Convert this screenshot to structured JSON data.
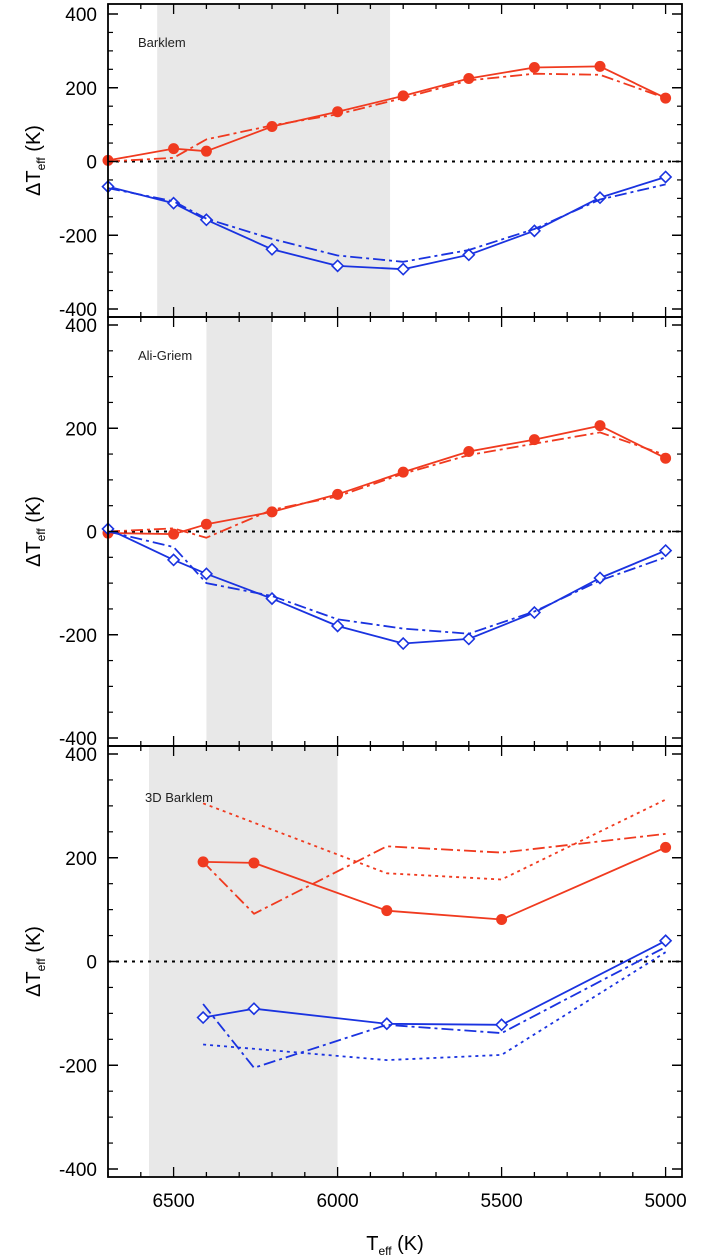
{
  "chart_data": [
    {
      "type": "line",
      "label": "Barklem",
      "ylabel": "ΔT",
      "ylabel_sub": "eff",
      "ylabel_unit": " (K)",
      "xlim": [
        6700,
        4950
      ],
      "ylim": [
        -400,
        400
      ],
      "yticks": [
        -400,
        -200,
        0,
        200,
        400
      ],
      "shade": [
        6550,
        5840
      ],
      "zero_line": true,
      "series": [
        {
          "color": "#f03a1f",
          "style": "solid",
          "marker": "circle",
          "x": [
            6700,
            6500,
            6400,
            6200,
            6000,
            5800,
            5600,
            5400,
            5200,
            5000
          ],
          "y": [
            3,
            35,
            28,
            95,
            135,
            178,
            225,
            255,
            258,
            172
          ]
        },
        {
          "color": "#f03a1f",
          "style": "dashdot",
          "marker": "none",
          "x": [
            6700,
            6500,
            6400,
            6200,
            6000,
            5800,
            5600,
            5400,
            5200,
            5000
          ],
          "y": [
            0,
            10,
            60,
            98,
            128,
            172,
            220,
            238,
            235,
            172
          ]
        },
        {
          "color": "#1a33e0",
          "style": "solid",
          "marker": "diamond",
          "x": [
            6700,
            6500,
            6400,
            6200,
            6000,
            5800,
            5600,
            5400,
            5200,
            5000
          ],
          "y": [
            -68,
            -113,
            -158,
            -238,
            -283,
            -292,
            -253,
            -188,
            -98,
            -42
          ]
        },
        {
          "color": "#1a33e0",
          "style": "dashdot",
          "marker": "none",
          "x": [
            6700,
            6500,
            6400,
            6200,
            6000,
            5800,
            5600,
            5400,
            5200,
            5000
          ],
          "y": [
            -72,
            -108,
            -155,
            -210,
            -255,
            -272,
            -240,
            -183,
            -103,
            -62
          ]
        }
      ]
    },
    {
      "type": "line",
      "label": "Ali-Griem",
      "ylabel": "ΔT",
      "ylabel_sub": "eff",
      "ylabel_unit": " (K)",
      "xlim": [
        6700,
        4950
      ],
      "ylim": [
        -400,
        400
      ],
      "yticks": [
        -400,
        -200,
        0,
        200,
        400
      ],
      "shade": [
        6400,
        6200
      ],
      "zero_line": true,
      "series": [
        {
          "color": "#f03a1f",
          "style": "solid",
          "marker": "circle",
          "x": [
            6700,
            6500,
            6400,
            6200,
            6000,
            5800,
            5600,
            5400,
            5200,
            5000
          ],
          "y": [
            -3,
            -5,
            14,
            38,
            72,
            115,
            155,
            178,
            205,
            142
          ]
        },
        {
          "color": "#f03a1f",
          "style": "dashdot",
          "marker": "none",
          "x": [
            6700,
            6500,
            6400,
            6200,
            6000,
            5800,
            5600,
            5400,
            5200,
            5000
          ],
          "y": [
            0,
            6,
            -12,
            42,
            68,
            112,
            148,
            170,
            192,
            148
          ]
        },
        {
          "color": "#1a33e0",
          "style": "solid",
          "marker": "diamond",
          "x": [
            6700,
            6500,
            6400,
            6200,
            6000,
            5800,
            5600,
            5400,
            5200,
            5000
          ],
          "y": [
            5,
            -55,
            -82,
            -130,
            -183,
            -217,
            -208,
            -157,
            -90,
            -37
          ]
        },
        {
          "color": "#1a33e0",
          "style": "dashdot",
          "marker": "none",
          "x": [
            6700,
            6500,
            6400,
            6200,
            6000,
            5800,
            5600,
            5400,
            5200,
            5000
          ],
          "y": [
            0,
            -30,
            -100,
            -125,
            -170,
            -188,
            -198,
            -155,
            -95,
            -50
          ]
        }
      ]
    },
    {
      "type": "line",
      "label": "3D Barklem",
      "xlabel": "T",
      "xlabel_sub": "eff",
      "xlabel_unit": " (K)",
      "ylabel": "ΔT",
      "ylabel_sub": "eff",
      "ylabel_unit": " (K)",
      "xlim": [
        6700,
        4950
      ],
      "ylim": [
        -400,
        400
      ],
      "yticks": [
        -400,
        -200,
        0,
        200,
        400
      ],
      "xticks": [
        6500,
        6000,
        5500,
        5000
      ],
      "shade": [
        6575,
        6000
      ],
      "zero_line": true,
      "series": [
        {
          "color": "#f03a1f",
          "style": "solid",
          "marker": "circle",
          "x": [
            6410,
            6255,
            5850,
            5500,
            5000
          ],
          "y": [
            192,
            190,
            98,
            81,
            220
          ]
        },
        {
          "color": "#f03a1f",
          "style": "dashdot",
          "marker": "none",
          "x": [
            6410,
            6255,
            5850,
            5500,
            5000
          ],
          "y": [
            192,
            92,
            222,
            210,
            246
          ]
        },
        {
          "color": "#f03a1f",
          "style": "dotted",
          "marker": "none",
          "x": [
            6410,
            5850,
            5500,
            5000
          ],
          "y": [
            305,
            170,
            158,
            312
          ]
        },
        {
          "color": "#1a33e0",
          "style": "solid",
          "marker": "diamond",
          "x": [
            6410,
            6255,
            5850,
            5500,
            5000
          ],
          "y": [
            -108,
            -91,
            -120,
            -122,
            40
          ]
        },
        {
          "color": "#1a33e0",
          "style": "dashdot",
          "marker": "none",
          "x": [
            6410,
            6255,
            5850,
            5500,
            5000
          ],
          "y": [
            -82,
            -205,
            -122,
            -138,
            28
          ]
        },
        {
          "color": "#1a33e0",
          "style": "dotted",
          "marker": "none",
          "x": [
            6410,
            5850,
            5500,
            5000
          ],
          "y": [
            -160,
            -190,
            -180,
            18
          ]
        }
      ]
    }
  ]
}
